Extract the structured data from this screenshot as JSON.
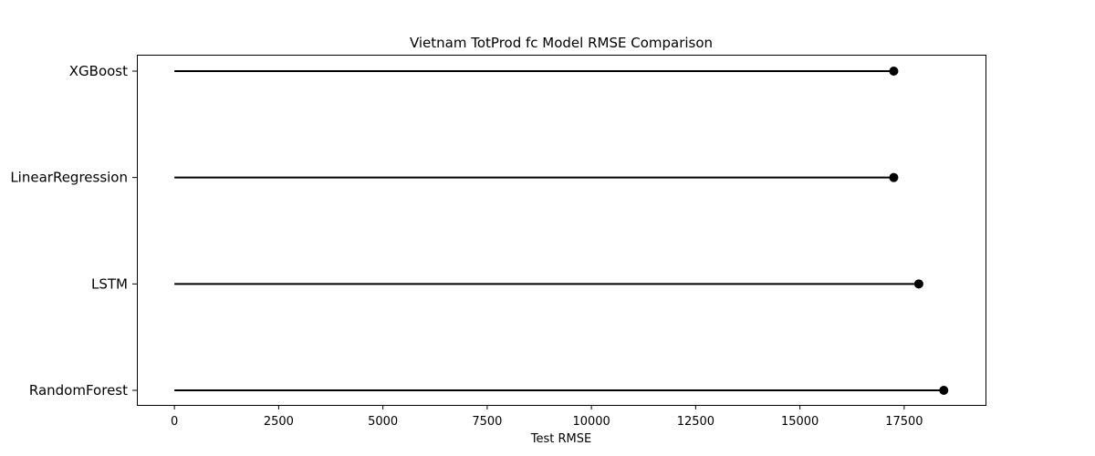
{
  "chart_data": {
    "type": "lollipop",
    "title": "Vietnam TotProd fc Model RMSE Comparison",
    "xlabel": "Test RMSE",
    "ylabel": "",
    "categories": [
      "XGBoost",
      "LinearRegression",
      "LSTM",
      "RandomForest"
    ],
    "values": [
      17250,
      17250,
      17850,
      18450
    ],
    "xlim": [
      -900,
      19450
    ],
    "xticks": [
      0,
      2500,
      5000,
      7500,
      10000,
      12500,
      15000,
      17500
    ],
    "xtick_labels": [
      "0",
      "2500",
      "5000",
      "7500",
      "10000",
      "12500",
      "15000",
      "17500"
    ],
    "grid": false,
    "legend": false,
    "stem_color": "#000000",
    "marker_color": "#000000"
  }
}
